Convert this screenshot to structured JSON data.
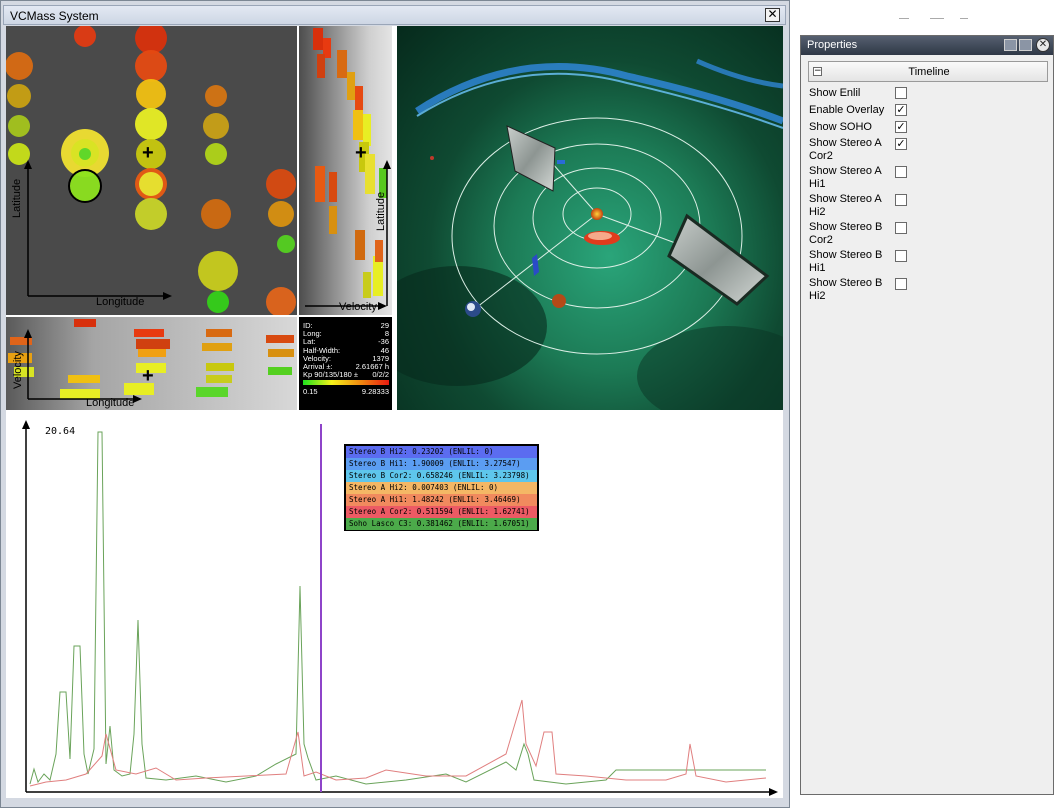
{
  "main_window": {
    "title": "VCMass System",
    "close_glyph": "✕"
  },
  "latlon_plot": {
    "x_label": "Longitude",
    "y_label": "Latitude",
    "cursor_glyph": "+"
  },
  "velocity_lat_plot": {
    "x_label": "Velocity",
    "y_label": "Latitude",
    "cursor_glyph": "+"
  },
  "velocity_lon_plot": {
    "x_label": "Longitude",
    "y_label": "Velocity",
    "cursor_glyph": "+"
  },
  "info_panel": {
    "rows": [
      {
        "key": "ID:",
        "value": "29"
      },
      {
        "key": "Long:",
        "value": "8"
      },
      {
        "key": "Lat:",
        "value": "-36"
      },
      {
        "key": "Half-Width:",
        "value": "46"
      },
      {
        "key": "Velocity:",
        "value": "1379"
      },
      {
        "key": "Arrival ±:",
        "value": "2.61667 h"
      },
      {
        "key": "Kp 90/135/180 ±",
        "value": "0/2/2"
      }
    ],
    "colorbar_min": "0.15",
    "colorbar_max": "9.28333"
  },
  "timeline_plot": {
    "y_max_label": "20.64",
    "legend": [
      {
        "text": "Stereo B Hi2:  0.23202 (ENLIL: 0)",
        "color": "#5b6cf0"
      },
      {
        "text": "Stereo B Hi1:  1.90009 (ENLIL: 3.27547)",
        "color": "#5b9df2"
      },
      {
        "text": "Stereo B Cor2: 0.658246 (ENLIL: 3.23798)",
        "color": "#5ec6ec"
      },
      {
        "text": "Stereo A Hi2:  0.007403 (ENLIL: 0)",
        "color": "#f4b765"
      },
      {
        "text": "Stereo A Hi1:  1.48242 (ENLIL: 3.46469)",
        "color": "#f18a5e"
      },
      {
        "text": "Stereo A Cor2: 0.511594 (ENLIL: 1.62741)",
        "color": "#ed5a64"
      },
      {
        "text": "Soho Lasco C3: 0.381462 (ENLIL: 1.67051)",
        "color": "#4caa4a"
      }
    ]
  },
  "properties": {
    "title": "Properties",
    "close_glyph": "✕",
    "section_label": "Timeline",
    "collapse_glyph": "−",
    "items": [
      {
        "label": "Show Enlil",
        "checked": false
      },
      {
        "label": "Enable Overlay",
        "checked": true
      },
      {
        "label": "Show SOHO",
        "checked": true
      },
      {
        "label": "Show Stereo A Cor2",
        "checked": true
      },
      {
        "label": "Show Stereo A Hi1",
        "checked": false
      },
      {
        "label": "Show Stereo A Hi2",
        "checked": false
      },
      {
        "label": "Show Stereo B Cor2",
        "checked": false
      },
      {
        "label": "Show Stereo B Hi1",
        "checked": false
      },
      {
        "label": "Show Stereo B Hi2",
        "checked": false
      }
    ],
    "check_glyph": "✓"
  }
}
